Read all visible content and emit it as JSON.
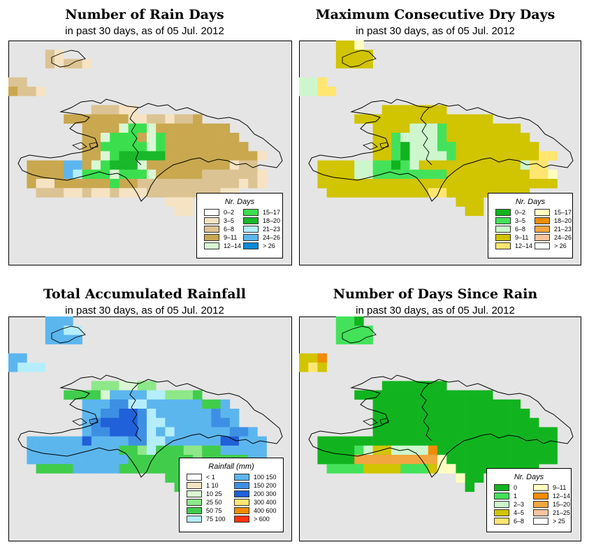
{
  "panels": [
    {
      "title": "Number of Rain Days",
      "subtitle": "in past 30 days, as of  05 Jul. 2012",
      "legend_title": "Nr. Days",
      "legend": [
        {
          "label": "0–2",
          "color": "#ffffff"
        },
        {
          "label": "3–5",
          "color": "#f5e3c3"
        },
        {
          "label": "6–8",
          "color": "#dcc393"
        },
        {
          "label": "9–11",
          "color": "#c9a84f"
        },
        {
          "label": "12–14",
          "color": "#d9f7d3"
        },
        {
          "label": "15–17",
          "color": "#3bdf4e"
        },
        {
          "label": "18–20",
          "color": "#18b82a"
        },
        {
          "label": "21–23",
          "color": "#b4eefc"
        },
        {
          "label": "24–26",
          "color": "#5cb6ee"
        },
        {
          "label": "> 26",
          "color": "#0e8ad4"
        }
      ],
      "cell_colors": {
        "A": "#c9a84f",
        "B": "#dcc393",
        "C": "#f5e3c3",
        "D": "#3bdf4e",
        "E": "#d9f7d3",
        "F": "#18b82a",
        "G": "#5cb6ee",
        "H": "#b4eefc"
      },
      "grid": [
        "...............................",
        "....BC.........................",
        "....BCBBC......................",
        "................................",
        "BB............................",
        "ABBC..........................",
        "................................",
        ".........BBBCC.................",
        "......AAAAAAACCBBCBBA.........",
        "........AAAAEDDEAAAAAAAA.......",
        "........AAEDDDAEDAAAAAAAA......",
        "........AADDDDDEDAAAAAAAAA.....",
        "........AAEDFFFFFAAAAAAAAAAC...",
        "..AAAAGGAEDFFFEAAAAAAAAACBB....",
        "..AAAAGHDDDEDDDEAAAAABBBBBBC...",
        "..ACCAAAAAADAABBBBBBBBBBBCBC..",
        "...BBBCCBCCBCCCBBBBBBBBCC.....",
        ".................CCC..........",
        "..................CC...........",
        "...............................",
        "..............................."
      ]
    },
    {
      "title": "Maximum Consecutive Dry Days",
      "subtitle": "in past 30 days, as of  05 Jul. 2012",
      "legend_title": "Nr. Days",
      "legend": [
        {
          "label": "0–2",
          "color": "#11b41f"
        },
        {
          "label": "3–5",
          "color": "#44e25a"
        },
        {
          "label": "6–8",
          "color": "#cdf6cd"
        },
        {
          "label": "9–11",
          "color": "#d1c400"
        },
        {
          "label": "12–14",
          "color": "#ffe670"
        },
        {
          "label": "15–17",
          "color": "#ffffc0"
        },
        {
          "label": "18–20",
          "color": "#f08c00"
        },
        {
          "label": "21–23",
          "color": "#f2a640"
        },
        {
          "label": "24–26",
          "color": "#f7c39c"
        },
        {
          "label": "> 26",
          "color": "#ffffff"
        }
      ],
      "cell_colors": {
        "A": "#d1c400",
        "B": "#44e25a",
        "C": "#cdf6cd",
        "D": "#11b41f",
        "E": "#ffe670",
        "F": "#ffffc0"
      },
      "grid": [
        "....AAF........................",
        "....AAAA.......................",
        "....AAAA.......................",
        "................................",
        "CCE...........................",
        "CCEE..........................",
        "................................",
        ".........AAAAAAA................",
        "......AAAAAAAAAAAAAAA.........",
        "........AAAACCCBAAAAAAAA.......",
        "........AABCCCCBAAAAAAAAA......",
        "........AABDCCCBBAAAAAAAAA.....",
        "........AABDCCCCBAAAAAAAAAEE...",
        "..AAAACCBBDBCAAAAAAAAAAACEE....",
        "..AAAACCBBBBBBBBAAAAAAAAAEEF...",
        "..AAAAAAAAAAAAAAAAAAAAAAAAAA..",
        "...AAAAAAAAAAAEEAAAAAAAAA.....",
        ".................AAA..........",
        "..................AA...........",
        "...............................",
        "..............................."
      ]
    },
    {
      "title": "Total Accumulated Rainfall",
      "subtitle": "in past 30 days, as of  05 Jul. 2012",
      "legend_title": "Rainfall (mm)",
      "legend": [
        {
          "label": "< 1",
          "color": "#ffffff"
        },
        {
          "label": "1  10",
          "color": "#f5e3c3"
        },
        {
          "label": "10  25",
          "color": "#d9f7d3"
        },
        {
          "label": "25  50",
          "color": "#8de888"
        },
        {
          "label": "50  75",
          "color": "#40cd4c"
        },
        {
          "label": "75  100",
          "color": "#b4eefc"
        },
        {
          "label": "100  150",
          "color": "#5cb6ee"
        },
        {
          "label": "150  200",
          "color": "#3d8fe3"
        },
        {
          "label": "200  300",
          "color": "#2060d8"
        },
        {
          "label": "300  400",
          "color": "#ffe670"
        },
        {
          "label": "400  600",
          "color": "#f08c00"
        },
        {
          "label": "> 600",
          "color": "#ff3311"
        }
      ],
      "cell_colors": {
        "A": "#5cb6ee",
        "B": "#3d8fe3",
        "C": "#2060d8",
        "D": "#b4eefc",
        "E": "#40cd4c",
        "F": "#8de888",
        "G": "#d9f7d3"
      },
      "grid": [
        "....AAA........................",
        "....AADD.......................",
        "....AAAA.......................",
        "................................",
        "AA............................",
        "ADDD..........................",
        "................................",
        ".........FFFGGFF................",
        "......EEEEGAAAADDFFFE.........",
        "........AAABBDDAAAAAAEEA.......",
        "........AABBCCBDAAAAAABAA......",
        "........ABCCCCBDDAAAAABBA......",
        "........ABBCCCBDADAAAAAABBA....",
        "..AAAAAACAAAABBDDAAAAAACCAAA...",
        "..AAAAAAAAAAEEFDEEEFFEEAAAAA...",
        "..AAAAAAAAAAAEEEEEEEFEEEEEAA..",
        "...EEEEAAAAAEEEEEEEEEEEE......",
        ".................EEE..........",
        "..................EE...........",
        "...............................",
        "..............................."
      ]
    },
    {
      "title": "Number of Days Since Rain",
      "subtitle": "in past 30 days, as of  05 Jul. 2012",
      "legend_title": "Nr. Days",
      "legend": [
        {
          "label": "0",
          "color": "#11b41f"
        },
        {
          "label": "1",
          "color": "#44e25a"
        },
        {
          "label": "2–3",
          "color": "#cdf6cd"
        },
        {
          "label": "4–5",
          "color": "#d1c400"
        },
        {
          "label": "6–8",
          "color": "#ffe670"
        },
        {
          "label": "9–11",
          "color": "#ffffc0"
        },
        {
          "label": "12–14",
          "color": "#f08c00"
        },
        {
          "label": "15–20",
          "color": "#f2a640"
        },
        {
          "label": "21–25",
          "color": "#f7c39c"
        },
        {
          "label": "> 25",
          "color": "#ffffff"
        }
      ],
      "cell_colors": {
        "A": "#11b41f",
        "B": "#44e25a",
        "C": "#cdf6cd",
        "D": "#d1c400",
        "E": "#f2a640",
        "F": "#f08c00",
        "G": "#ffe670",
        "H": "#ffffc0"
      },
      "grid": [
        "....BBA........................",
        "....BBBB.......................",
        "....BBBB.......................",
        "................................",
        "DDF...........................",
        "DGD...........................",
        "................................",
        ".........AAAAAAA................",
        "......AAAAAAAAAAAAAAA.........",
        "........AAAAAAAAAAAAAAAA.......",
        "........AAAAAAAAAAAAAAAAA......",
        "........AAAAAAAAAAAAAAAAAA.....",
        "........AAAAAAAAAAAAAAAAAAAA...",
        "..AAAAAAAAAAAAAAAAAAAAAAAAAA...",
        "..AAAABCDDCCCCFAAAAAAAAAAAAA...",
        "..AAAAEEEEEEEEEHAAAAAAAAAAAA..",
        "...BBBBDDDDBBBDHHAAAAAAAAA....",
        ".................HAA..........",
        "..................A............",
        "...............................",
        "..............................."
      ]
    }
  ]
}
